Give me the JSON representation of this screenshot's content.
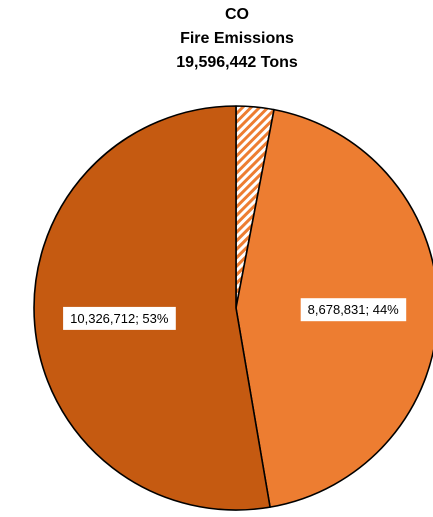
{
  "chart_data": {
    "type": "pie",
    "title": [
      "CO",
      "Fire Emissions",
      "19,596,442 Tons"
    ],
    "total": 19596442,
    "slices": [
      {
        "value": 590899,
        "label": "",
        "fill": "hatch",
        "color": "#ED7D31"
      },
      {
        "value": 8678831,
        "label": "8,678,831; 44%",
        "fill": "solid",
        "color": "#ED7D31"
      },
      {
        "value": 10326712,
        "label": "10,326,712; 53%",
        "fill": "solid",
        "color": "#C55A11"
      }
    ]
  }
}
